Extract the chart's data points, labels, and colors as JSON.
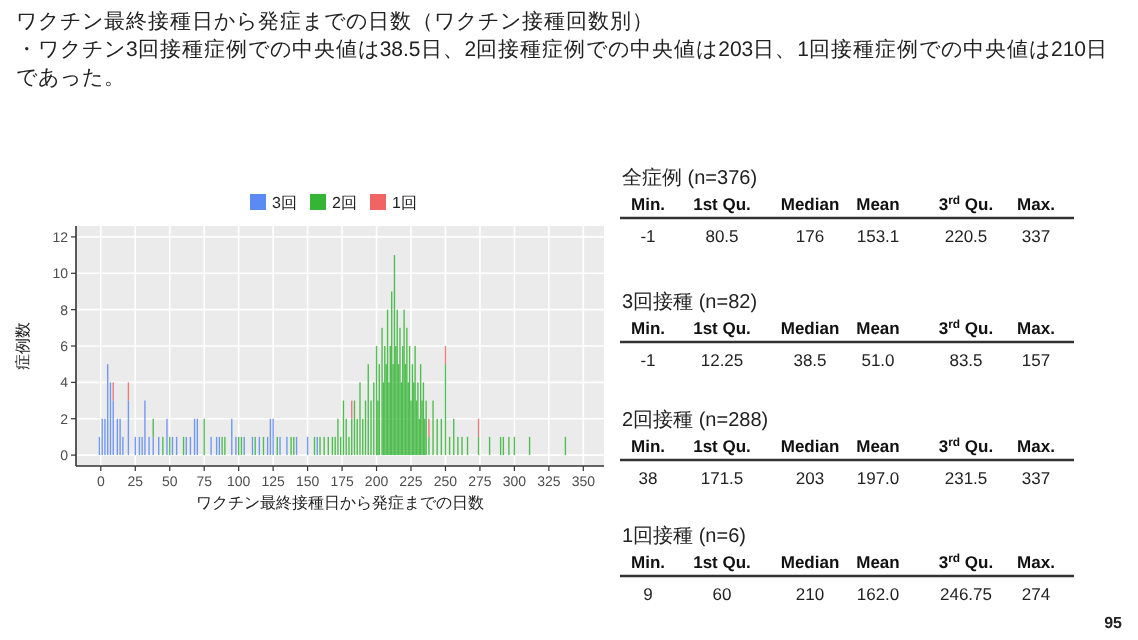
{
  "chart_data": [
    {
      "type": "bar",
      "stacked": true,
      "title": "ワクチン最終接種日から発症までの日数（ワクチン接種回数別）",
      "subtitle": "・ワクチン3回接種症例での中央値は38.5日、2回接種症例での中央値は203日、1回接種症例での中央値は210日であった。",
      "xlabel": "ワクチン最終接種日から発症までの日数",
      "ylabel": "症例数",
      "xlim": [
        -18,
        365
      ],
      "xticks": [
        0,
        25,
        50,
        75,
        100,
        125,
        150,
        175,
        200,
        225,
        250,
        275,
        300,
        325,
        350
      ],
      "ylim": [
        -0.6,
        12.6
      ],
      "yticks": [
        0,
        2,
        4,
        6,
        8,
        10,
        12
      ],
      "grid": true,
      "legend": "top",
      "x": [
        -1,
        1,
        3,
        5,
        7,
        9,
        12,
        14,
        16,
        20,
        25,
        28,
        30,
        32,
        35,
        38,
        42,
        45,
        48,
        50,
        52,
        55,
        60,
        62,
        65,
        68,
        70,
        75,
        80,
        84,
        86,
        88,
        90,
        95,
        98,
        100,
        102,
        104,
        110,
        112,
        115,
        118,
        121,
        123,
        125,
        128,
        130,
        135,
        138,
        140,
        142,
        150,
        155,
        157,
        159,
        162,
        165,
        168,
        170,
        172,
        174,
        176,
        178,
        180,
        182,
        184,
        186,
        188,
        190,
        192,
        194,
        196,
        198,
        200,
        201,
        202,
        204,
        205,
        206,
        207,
        208,
        209,
        210,
        211,
        212,
        213,
        214,
        215,
        216,
        217,
        218,
        219,
        220,
        221,
        222,
        223,
        224,
        225,
        226,
        227,
        228,
        229,
        230,
        231,
        232,
        233,
        234,
        235,
        236,
        238,
        241,
        244,
        247,
        250,
        253,
        256,
        259,
        262,
        266,
        274,
        282,
        290,
        292,
        296,
        300,
        311,
        337
      ],
      "series": [
        {
          "name": "3回",
          "color": "#5b8af5",
          "values": [
            1,
            2,
            2,
            5,
            4,
            3,
            2,
            2,
            1,
            3,
            1,
            1,
            1,
            3,
            1,
            1,
            1,
            null,
            2,
            null,
            1,
            1,
            null,
            1,
            1,
            2,
            2,
            null,
            1,
            1,
            1,
            null,
            null,
            2,
            1,
            null,
            null,
            1,
            1,
            null,
            1,
            null,
            1,
            2,
            2,
            null,
            1,
            1,
            null,
            null,
            1,
            1,
            null,
            1,
            null,
            null,
            null,
            null,
            null,
            null,
            null,
            null,
            null,
            null,
            null,
            null,
            null,
            null,
            null,
            null,
            null,
            null,
            null,
            null,
            null,
            null,
            null,
            null,
            null,
            null,
            null,
            null,
            null,
            null,
            null,
            null,
            null,
            null,
            null,
            null,
            null,
            null,
            null,
            null,
            null,
            null,
            null,
            null,
            null,
            null,
            null,
            null,
            null,
            null,
            null,
            null,
            null,
            null,
            null,
            null,
            null,
            null,
            null,
            null,
            null,
            null,
            null,
            null,
            null,
            null,
            null,
            null,
            null,
            null,
            null,
            null,
            null
          ]
        },
        {
          "name": "2回",
          "color": "#35b535",
          "values": [
            null,
            null,
            null,
            null,
            null,
            null,
            null,
            null,
            null,
            null,
            null,
            null,
            null,
            null,
            null,
            1,
            null,
            1,
            null,
            1,
            null,
            null,
            1,
            null,
            null,
            null,
            null,
            2,
            null,
            null,
            null,
            1,
            1,
            null,
            null,
            1,
            1,
            null,
            null,
            1,
            null,
            1,
            null,
            null,
            null,
            1,
            null,
            null,
            1,
            1,
            null,
            null,
            1,
            null,
            1,
            1,
            1,
            1,
            1,
            2,
            1,
            3,
            2,
            1,
            2,
            3,
            2,
            4,
            2,
            3,
            5,
            3,
            4,
            6,
            3,
            5,
            7,
            4,
            6,
            5,
            8,
            4,
            6,
            9,
            5,
            11,
            6,
            8,
            5,
            7,
            4,
            6,
            8,
            5,
            7,
            4,
            6,
            3,
            5,
            4,
            6,
            3,
            4,
            2,
            5,
            3,
            4,
            2,
            3,
            1,
            3,
            2,
            2,
            5,
            1,
            2,
            1,
            1,
            1,
            1,
            1,
            1,
            1,
            1,
            1,
            1,
            1
          ]
        },
        {
          "name": "1回",
          "color": "#f06464",
          "values": [
            null,
            null,
            null,
            null,
            null,
            1,
            null,
            null,
            null,
            1,
            null,
            null,
            null,
            null,
            null,
            null,
            null,
            null,
            null,
            null,
            null,
            null,
            null,
            null,
            null,
            null,
            null,
            null,
            null,
            null,
            null,
            null,
            null,
            null,
            null,
            null,
            null,
            null,
            null,
            null,
            null,
            null,
            null,
            null,
            null,
            null,
            null,
            null,
            null,
            null,
            null,
            null,
            null,
            null,
            null,
            null,
            null,
            null,
            null,
            null,
            null,
            null,
            null,
            null,
            1,
            null,
            null,
            null,
            null,
            null,
            null,
            null,
            null,
            null,
            null,
            null,
            null,
            null,
            null,
            null,
            null,
            null,
            null,
            null,
            null,
            null,
            null,
            null,
            null,
            null,
            null,
            null,
            null,
            null,
            null,
            null,
            null,
            null,
            null,
            null,
            null,
            null,
            null,
            null,
            null,
            null,
            null,
            null,
            null,
            1,
            null,
            null,
            null,
            1,
            null,
            null,
            null,
            null,
            null,
            1,
            null,
            null,
            null,
            null,
            null,
            null,
            null
          ]
        }
      ]
    },
    {
      "type": "other",
      "title": "全症例 (n=376)",
      "categories": [
        "Min.",
        "1st Qu.",
        "Median",
        "Mean",
        "3$^{rd}$ Qu.",
        "Max."
      ],
      "value_labels": [
        "-1",
        "80.5",
        "176",
        "153.1",
        "220.5",
        "337"
      ]
    },
    {
      "type": "other",
      "title": "3回接種 (n=82)",
      "categories": [
        "Min.",
        "1st Qu.",
        "Median",
        "Mean",
        "3$^{rd}$ Qu.",
        "Max."
      ],
      "value_labels": [
        "-1",
        "12.25",
        "38.5",
        "51.0",
        "83.5",
        "157"
      ]
    },
    {
      "type": "other",
      "title": "2回接種 (n=288)",
      "categories": [
        "Min.",
        "1st Qu.",
        "Median",
        "Mean",
        "3$^{rd}$ Qu.",
        "Max."
      ],
      "value_labels": [
        "38",
        "171.5",
        "203",
        "197.0",
        "231.5",
        "337"
      ]
    },
    {
      "type": "other",
      "title": "1回接種 (n=6)",
      "categories": [
        "Min.",
        "1st Qu.",
        "Median",
        "Mean",
        "3$^{rd}$ Qu.",
        "Max."
      ],
      "value_labels": [
        "9",
        "60",
        "210",
        "162.0",
        "246.75",
        "274"
      ],
      "annotations": [
        "95"
      ]
    }
  ]
}
